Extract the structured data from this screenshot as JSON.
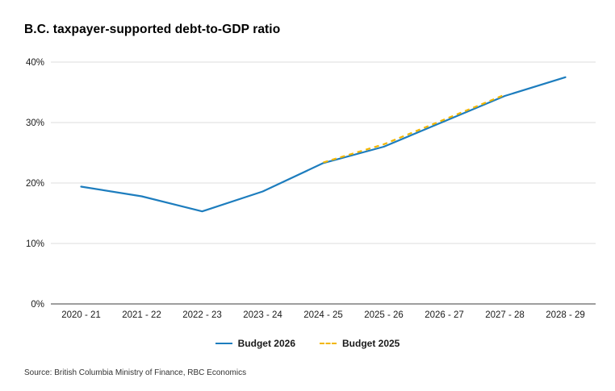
{
  "title": "B.C. taxpayer-supported debt-to-GDP ratio",
  "source": "Source: British Columbia Ministry of Finance, RBC Economics",
  "colors": {
    "budget_2026": "#1d7dbe",
    "budget_2025": "#f2b600",
    "grid": "#dcdcdc",
    "axis": "#3d3d3d",
    "tick_text": "#1a1a1a"
  },
  "chart_data": {
    "type": "line",
    "title": "B.C. taxpayer-supported debt-to-GDP ratio",
    "xlabel": "",
    "ylabel": "",
    "categories": [
      "2020 - 21",
      "2021 - 22",
      "2022 - 23",
      "2023 - 24",
      "2024 - 25",
      "2025 - 26",
      "2026 - 27",
      "2027 - 28",
      "2028 - 29"
    ],
    "series": [
      {
        "name": "Budget 2026",
        "color": "#1d7dbe",
        "dash": null,
        "values": [
          19.4,
          17.8,
          15.3,
          18.6,
          23.3,
          26.0,
          30.2,
          34.4,
          37.5
        ]
      },
      {
        "name": "Budget 2025",
        "color": "#f2b600",
        "dash": "6 5",
        "values": [
          null,
          null,
          null,
          null,
          23.4,
          26.4,
          30.5,
          34.6,
          null
        ]
      }
    ],
    "ylim": [
      0,
      40
    ],
    "yticks": [
      0,
      10,
      20,
      30,
      40
    ],
    "ytick_format": "percent",
    "grid": "horizontal",
    "legend_position": "bottom"
  }
}
